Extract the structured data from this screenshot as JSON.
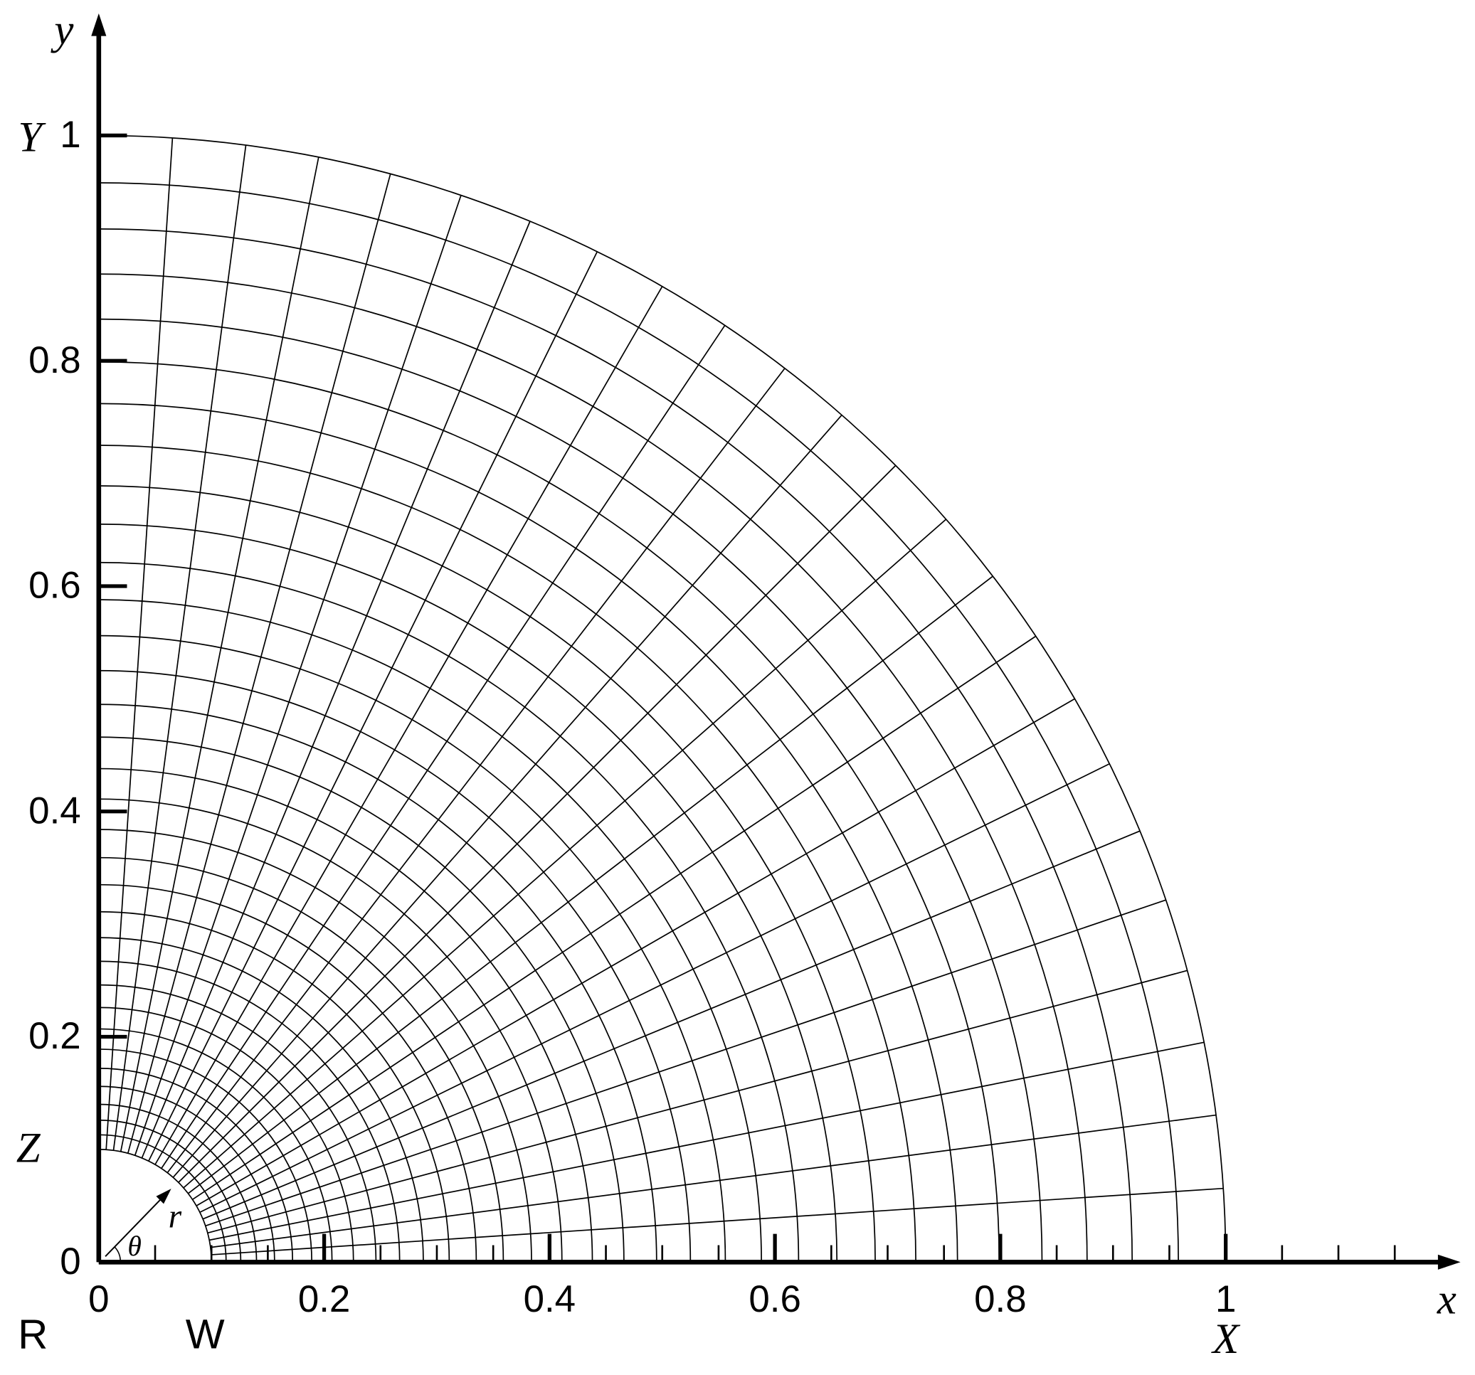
{
  "chart_data": {
    "type": "mesh",
    "x_label": "x",
    "y_label": "y",
    "xlim": [
      0,
      1.2
    ],
    "ylim": [
      0,
      1.1
    ],
    "xticks": [
      0,
      0.2,
      0.4,
      0.6,
      0.8,
      1
    ],
    "yticks": [
      0,
      0.2,
      0.4,
      0.6,
      0.8,
      1
    ],
    "minor_xticks": [
      0.05,
      0.1,
      0.15,
      0.25,
      0.3,
      0.35,
      0.45,
      0.5,
      0.55,
      0.65,
      0.7,
      0.75,
      0.85,
      0.9,
      0.95,
      1.05,
      1.1,
      1.15
    ],
    "radii": [
      0.1,
      0.113,
      0.126,
      0.14,
      0.156,
      0.172,
      0.189,
      0.207,
      0.226,
      0.246,
      0.267,
      0.288,
      0.311,
      0.335,
      0.359,
      0.384,
      0.411,
      0.438,
      0.466,
      0.495,
      0.525,
      0.556,
      0.588,
      0.621,
      0.655,
      0.689,
      0.725,
      0.762,
      0.799,
      0.837,
      0.877,
      0.917,
      0.958,
      1
    ],
    "theta_deg": [
      0,
      3.75,
      7.5,
      11.25,
      15,
      18.75,
      22.5,
      26.25,
      30,
      33.75,
      37.5,
      41.25,
      45,
      48.75,
      52.5,
      56.25,
      60,
      63.75,
      67.5,
      71.25,
      75,
      78.75,
      82.5,
      86.25,
      90
    ],
    "annotations": {
      "Y": "Y",
      "Z": "Z",
      "R": "R",
      "W": "W",
      "X": "X",
      "r": "r",
      "theta": "θ"
    },
    "color": "#000000"
  }
}
